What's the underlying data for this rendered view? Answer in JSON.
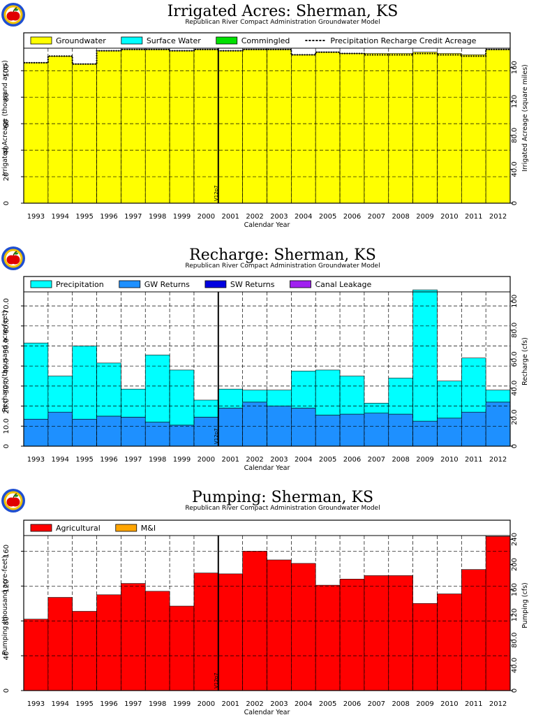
{
  "chart_data": [
    {
      "id": "irrigated",
      "type": "bar",
      "title": "Irrigated Acres: Sherman, KS",
      "subtitle": "Republican River Compact Administration Groundwater Model",
      "xlabel": "Calendar Year",
      "ylabel": "Irrigated Acreage (thousand acres)",
      "y2label": "Irrigated Acreage (square miles)",
      "categories": [
        "1993",
        "1994",
        "1995",
        "1996",
        "1997",
        "1998",
        "1999",
        "2000",
        "2001",
        "2002",
        "2003",
        "2004",
        "2005",
        "2006",
        "2007",
        "2008",
        "2009",
        "2010",
        "2011",
        "2012"
      ],
      "ylim": [
        0,
        117
      ],
      "y_ticks": [
        0,
        20,
        40,
        60,
        80,
        100
      ],
      "y2lim": [
        0,
        182.8
      ],
      "y2_ticks": [
        "0",
        "40.0",
        "80.0",
        "120",
        "160"
      ],
      "y2_tick_values": [
        0,
        40,
        80,
        120,
        160
      ],
      "marker_label": "V12p7",
      "marker_year": "2000",
      "legend": [
        {
          "name": "Groundwater",
          "color": "#ffff00",
          "kind": "box"
        },
        {
          "name": "Surface Water",
          "color": "#00ffff",
          "kind": "box"
        },
        {
          "name": "Commingled",
          "color": "#00e000",
          "kind": "box"
        },
        {
          "name": "Precipitation Recharge Credit Acreage",
          "color": "#000000",
          "kind": "dash"
        }
      ],
      "series": [
        {
          "name": "Groundwater",
          "color": "#ffff00",
          "values": [
            106,
            111,
            105,
            115,
            116,
            116,
            115,
            116,
            115,
            116,
            116,
            112,
            114,
            113,
            113,
            113,
            114,
            113,
            112,
            116
          ]
        }
      ],
      "line_series": {
        "name": "Precipitation Recharge Credit Acreage",
        "values": [
          106,
          111,
          105,
          115,
          116,
          116,
          115,
          116,
          115,
          116,
          116,
          112,
          114,
          113,
          112,
          112,
          113,
          112,
          111,
          116
        ]
      }
    },
    {
      "id": "recharge",
      "type": "bar",
      "title": "Recharge: Sherman, KS",
      "subtitle": "Republican River Compact Administration Groundwater Model",
      "xlabel": "Calendar Year",
      "ylabel": "Recharge (thousand acre-feet)",
      "y2label": "Recharge (cfs)",
      "categories": [
        "1993",
        "1994",
        "1995",
        "1996",
        "1997",
        "1998",
        "1999",
        "2000",
        "2001",
        "2002",
        "2003",
        "2004",
        "2005",
        "2006",
        "2007",
        "2008",
        "2009",
        "2010",
        "2011",
        "2012"
      ],
      "ylim": [
        0,
        77
      ],
      "y_ticks": [
        "0",
        "10.0",
        "20.0",
        "30.0",
        "40.0",
        "50.0",
        "60.0",
        "70.0"
      ],
      "y_tick_values": [
        0,
        10,
        20,
        30,
        40,
        50,
        60,
        70
      ],
      "y2lim": [
        0,
        106.4
      ],
      "y2_ticks": [
        "0",
        "20.0",
        "40.0",
        "60.0",
        "80.0",
        "100"
      ],
      "y2_tick_values": [
        0,
        20,
        40,
        60,
        80,
        100
      ],
      "marker_label": "V12p7",
      "marker_year": "2000",
      "legend": [
        {
          "name": "Precipitation",
          "color": "#00ffff",
          "kind": "box"
        },
        {
          "name": "GW Returns",
          "color": "#1e90ff",
          "kind": "box"
        },
        {
          "name": "SW Returns",
          "color": "#0000e0",
          "kind": "box"
        },
        {
          "name": "Canal Leakage",
          "color": "#a020f0",
          "kind": "box"
        }
      ],
      "series": [
        {
          "name": "GW Returns",
          "color": "#1e90ff",
          "values": [
            13.5,
            17,
            13.5,
            15,
            14.5,
            12,
            10.5,
            14.5,
            19,
            22,
            20,
            19,
            15.5,
            16,
            16.5,
            16,
            12.5,
            14,
            17,
            22
          ]
        },
        {
          "name": "Precipitation",
          "color": "#00ffff",
          "values": [
            38,
            18,
            36.5,
            26.5,
            14,
            33.5,
            27.5,
            8.5,
            9.5,
            6,
            8,
            18.5,
            22.5,
            19,
            5,
            18,
            65.5,
            18.5,
            27,
            6
          ]
        }
      ]
    },
    {
      "id": "pumping",
      "type": "bar",
      "title": "Pumping: Sherman, KS",
      "subtitle": "Republican River Compact Administration Groundwater Model",
      "xlabel": "Calendar Year",
      "ylabel": "Pumping (thousand acre-feet)",
      "y2label": "Pumping (cfs)",
      "categories": [
        "1993",
        "1994",
        "1995",
        "1996",
        "1997",
        "1998",
        "1999",
        "2000",
        "2001",
        "2002",
        "2003",
        "2004",
        "2005",
        "2006",
        "2007",
        "2008",
        "2009",
        "2010",
        "2011",
        "2012"
      ],
      "ylim": [
        0,
        178
      ],
      "y_ticks": [
        0,
        40,
        80,
        120,
        160
      ],
      "y2lim": [
        0,
        246
      ],
      "y2_ticks": [
        "0",
        "40.0",
        "80.0",
        "120",
        "160",
        "200",
        "240"
      ],
      "y2_tick_values": [
        0,
        40,
        80,
        120,
        160,
        200,
        240
      ],
      "marker_label": "V12p7",
      "marker_year": "2000",
      "legend": [
        {
          "name": "Agricultural",
          "color": "#ff0000",
          "kind": "box"
        },
        {
          "name": "M&I",
          "color": "#ffa500",
          "kind": "box"
        }
      ],
      "series": [
        {
          "name": "Agricultural",
          "color": "#ff0000",
          "values": [
            82,
            107,
            91,
            110,
            123,
            114,
            97,
            135,
            134,
            160,
            150,
            146,
            121,
            128,
            132,
            132,
            100,
            111,
            139,
            177
          ]
        }
      ]
    }
  ]
}
